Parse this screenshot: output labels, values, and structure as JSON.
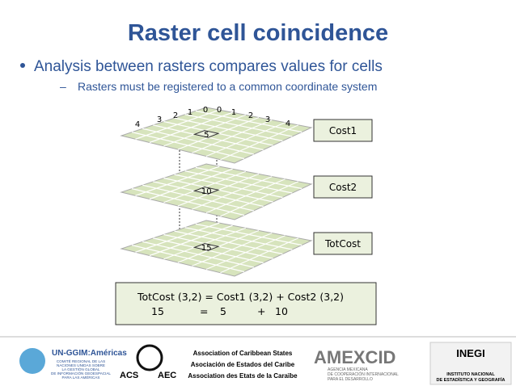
{
  "header": {
    "title": "Raster cell coincidence"
  },
  "bullets": [
    {
      "text": "Analysis between rasters compares values for cells",
      "sub": "Rasters must be registered to a common coordinate system"
    }
  ],
  "figure": {
    "edge_numbers": [
      "4",
      "3",
      "2",
      "1",
      "0",
      "0",
      "1",
      "2",
      "3",
      "4"
    ],
    "layers": [
      {
        "label": "Cost1",
        "cell": "5"
      },
      {
        "label": "Cost2",
        "cell": "10"
      },
      {
        "label": "TotCost",
        "cell": "15"
      }
    ],
    "formula": {
      "line1": "TotCost (3,2) = Cost1 (3,2) + Cost2 (3,2)",
      "line2": [
        "15",
        "=",
        "5",
        "+",
        "10"
      ]
    }
  },
  "footer": {
    "logos": [
      {
        "name": "UN-GGIM:Américas",
        "text": [
          "COMITÉ REGIONAL DE LAS",
          "NACIONES UNIDAS SOBRE",
          "LA GESTIÓN GLOBAL",
          "DE INFORMACIÓN GEOESPACIAL",
          "PARA LAS AMÉRICAS"
        ]
      },
      {
        "name": [
          "ACS",
          "AEC"
        ],
        "text": [
          "Association of Caribbean States",
          "Asociación de Estados del Caribe",
          "Association des Etats de la Caraïbe"
        ]
      },
      {
        "name": "AMEXCID",
        "text": [
          "AGENCIA MEXICANA",
          "DE COOPERACIÓN INTERNACIONAL",
          "PARA EL DESARROLLO"
        ]
      },
      {
        "name": "INEGI",
        "text": [
          "INSTITUTO NACIONAL",
          "DE ESTADÍSTICA Y GEOGRAFÍA"
        ]
      }
    ]
  }
}
